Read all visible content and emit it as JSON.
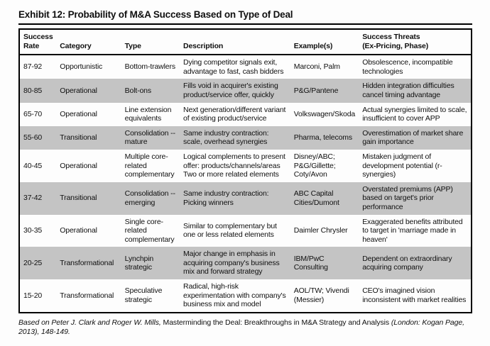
{
  "title": "Exhibit 12: Probability of M&A Success Based on Type of Deal",
  "colors": {
    "row_shade": "#c4c4c4",
    "border": "#000000",
    "text": "#101010"
  },
  "table": {
    "columns": [
      "Success\nRate",
      "Category",
      "Type",
      "Description",
      "Example(s)",
      "Success Threats\n(Ex-Pricing, Phase)"
    ],
    "rows": [
      {
        "rate": "87-92",
        "category": "Opportunistic",
        "type": "Bottom-trawlers",
        "description": "Dying competitor signals exit, advantage to fast, cash bidders",
        "examples": "Marconi, Palm",
        "threats": "Obsolescence, incompatible technologies",
        "shaded": false
      },
      {
        "rate": "80-85",
        "category": "Operational",
        "type": "Bolt-ons",
        "description": "Fills void in acquirer's existing product/service offer, quickly",
        "examples": "P&G/Pantene",
        "threats": "Hidden integration difficulties cancel timing advantage",
        "shaded": true
      },
      {
        "rate": "65-70",
        "category": "Operational",
        "type": "Line extension equivalents",
        "description": "Next generation/different variant of existing product/service",
        "examples": "Volkswagen/Skoda",
        "threats": "Actual synergies limited to scale, insufficient to cover APP",
        "shaded": false
      },
      {
        "rate": "55-60",
        "category": "Transitional",
        "type": "Consolidation -- mature",
        "description": "Same industry contraction: scale, overhead synergies",
        "examples": "Pharma, telecoms",
        "threats": "Overestimation of market share gain importance",
        "shaded": true
      },
      {
        "rate": "40-45",
        "category": "Operational",
        "type": "Multiple core-related complementary",
        "description": "Logical complements to present offer: products/channels/areas\nTwo or more related elements",
        "examples": "Disney/ABC; P&G/Gillette; Coty/Avon",
        "threats": "Mistaken judgment of development potential (r-synergies)",
        "shaded": false
      },
      {
        "rate": "37-42",
        "category": "Transitional",
        "type": "Consolidation -- emerging",
        "description": "Same industry contraction: Picking winners",
        "examples": "ABC Capital Cities/Dumont",
        "threats": "Overstated premiums (APP) based on target's prior performance",
        "shaded": true
      },
      {
        "rate": "30-35",
        "category": "Operational",
        "type": "Single core-related complementary",
        "description": "Similar to complementary but one or less related elements",
        "examples": "Daimler Chrysler",
        "threats": "Exaggerated benefits attributed to target in 'marriage made in heaven'",
        "shaded": false
      },
      {
        "rate": "20-25",
        "category": "Transformational",
        "type": "Lynchpin strategic",
        "description": "Major change in emphasis in acquiring company's business mix and forward strategy",
        "examples": "IBM/PwC Consulting",
        "threats": "Dependent on extraordinary acquiring company",
        "shaded": true
      },
      {
        "rate": "15-20",
        "category": "Transformational",
        "type": "Speculative strategic",
        "description": "Radical, high-risk experimentation with company's business mix and model",
        "examples": "AOL/TW; Vivendi (Messier)",
        "threats": "CEO's imagined vision inconsistent with market realities",
        "shaded": false
      }
    ]
  },
  "footer": {
    "part1": "Based on Peter J. Clark and Roger W. Mills, ",
    "book_title": "Masterminding the Deal: Breakthroughs in M&A Strategy and Analysis",
    "part3": " (London: Kogan Page, 2013), 148-149."
  }
}
